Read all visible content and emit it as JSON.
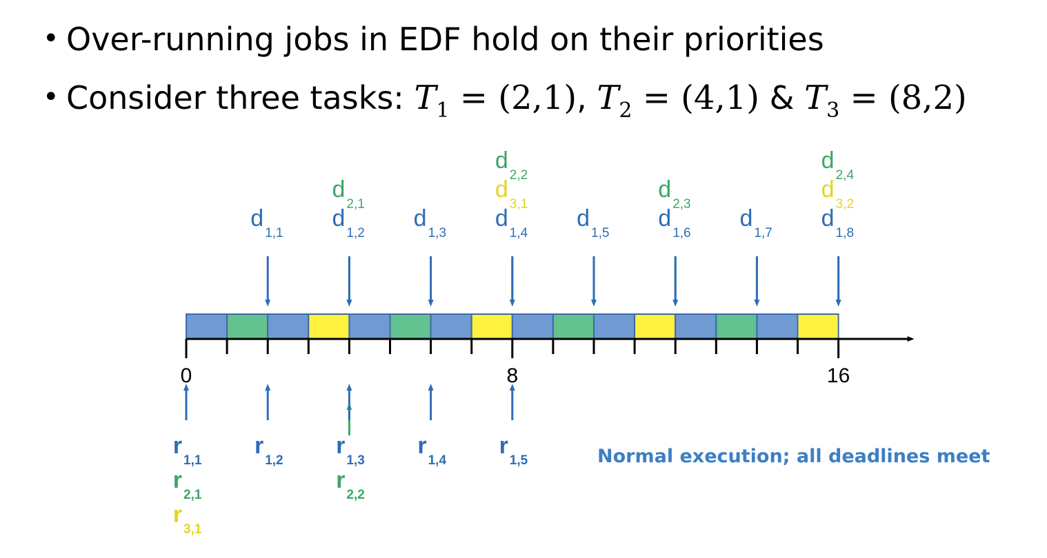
{
  "bullets": {
    "b1": "Over-running jobs in EDF hold on their priorities",
    "b2_prefix": "Consider three tasks: ",
    "t1_sym": "T",
    "t1_sub": "1",
    "t1_val": " = (2,1)",
    "sep1": ", ",
    "t2_sym": "T",
    "t2_sub": "2",
    "t2_val": " = (4,1)",
    "sep2": " & ",
    "t3_sym": "T",
    "t3_sub": "3",
    "t3_val": " = (8,2)"
  },
  "colors": {
    "task1": "#6f9bd2",
    "task2": "#63c28f",
    "task3": "#fff23f",
    "task1_text": "#2d6db5",
    "task2_text": "#3aa864",
    "task3_text": "#e3d520",
    "outline": "#3d6aa8",
    "axis": "#000000"
  },
  "chart_data": {
    "type": "timeline",
    "time_range": [
      0,
      16
    ],
    "slot_size": 1,
    "tick_labels": [
      {
        "t": 0,
        "label": "0"
      },
      {
        "t": 8,
        "label": "8"
      },
      {
        "t": 16,
        "label": "16"
      }
    ],
    "schedule": [
      1,
      2,
      1,
      3,
      1,
      2,
      1,
      3,
      1,
      2,
      1,
      3,
      1,
      2,
      1,
      3
    ],
    "deadlines": [
      {
        "t": 2,
        "labels": [
          {
            "task": 1,
            "base": "d",
            "sub": "1,1"
          }
        ]
      },
      {
        "t": 4,
        "labels": [
          {
            "task": 2,
            "base": "d",
            "sub": "2,1"
          },
          {
            "task": 1,
            "base": "d",
            "sub": "1,2"
          }
        ]
      },
      {
        "t": 6,
        "labels": [
          {
            "task": 1,
            "base": "d",
            "sub": "1,3"
          }
        ]
      },
      {
        "t": 8,
        "labels": [
          {
            "task": 2,
            "base": "d",
            "sub": "2,2"
          },
          {
            "task": 3,
            "base": "d",
            "sub": "3,1"
          },
          {
            "task": 1,
            "base": "d",
            "sub": "1,4"
          }
        ]
      },
      {
        "t": 10,
        "labels": [
          {
            "task": 1,
            "base": "d",
            "sub": "1,5"
          }
        ]
      },
      {
        "t": 12,
        "labels": [
          {
            "task": 2,
            "base": "d",
            "sub": "2,3"
          },
          {
            "task": 1,
            "base": "d",
            "sub": "1,6"
          }
        ]
      },
      {
        "t": 14,
        "labels": [
          {
            "task": 1,
            "base": "d",
            "sub": "1,7"
          }
        ]
      },
      {
        "t": 16,
        "labels": [
          {
            "task": 2,
            "base": "d",
            "sub": "2,4"
          },
          {
            "task": 3,
            "base": "d",
            "sub": "3,2"
          },
          {
            "task": 1,
            "base": "d",
            "sub": "1,8"
          }
        ]
      }
    ],
    "releases": [
      {
        "t": 0,
        "labels": [
          {
            "task": 1,
            "base": "r",
            "sub": "1,1"
          },
          {
            "task": 2,
            "base": "r",
            "sub": "2,1"
          },
          {
            "task": 3,
            "base": "r",
            "sub": "3,1"
          }
        ]
      },
      {
        "t": 2,
        "labels": [
          {
            "task": 1,
            "base": "r",
            "sub": "1,2"
          }
        ]
      },
      {
        "t": 4,
        "labels": [
          {
            "task": 1,
            "base": "r",
            "sub": "1,3"
          },
          {
            "task": 2,
            "base": "r",
            "sub": "2,2"
          }
        ]
      },
      {
        "t": 6,
        "labels": [
          {
            "task": 1,
            "base": "r",
            "sub": "1,4"
          }
        ]
      },
      {
        "t": 8,
        "labels": [
          {
            "task": 1,
            "base": "r",
            "sub": "1,5"
          }
        ]
      }
    ]
  },
  "note": "Normal execution; all deadlines meet"
}
